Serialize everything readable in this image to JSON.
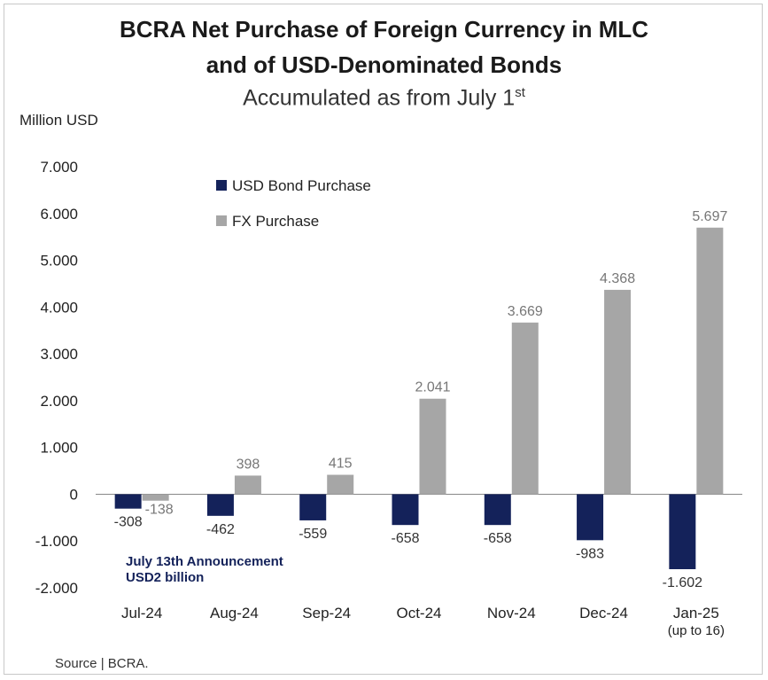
{
  "chart_data": {
    "type": "bar",
    "title_line1": "BCRA Net Purchase of Foreign Currency in MLC",
    "title_line2": "and of USD-Denominated Bonds",
    "subtitle_main": "Accumulated as from July 1",
    "subtitle_sup": "st",
    "ylabel": "Million USD",
    "categories": [
      "Jul-24",
      "Aug-24",
      "Sep-24",
      "Oct-24",
      "Nov-24",
      "Dec-24",
      "Jan-25"
    ],
    "category_sublabels": [
      "",
      "",
      "",
      "",
      "",
      "",
      "(up to 16)"
    ],
    "ylim": [
      -2000,
      7000
    ],
    "yticks": [
      -2000,
      -1000,
      0,
      1000,
      2000,
      3000,
      4000,
      5000,
      6000,
      7000
    ],
    "ytick_labels": [
      "-2.000",
      "-1.000",
      "0",
      "1.000",
      "2.000",
      "3.000",
      "4.000",
      "5.000",
      "6.000",
      "7.000"
    ],
    "series": [
      {
        "name": "USD Bond Purchase",
        "color": "#14225a",
        "values": [
          -308,
          -462,
          -559,
          -658,
          -658,
          -983,
          -1602
        ],
        "labels": [
          "-308",
          "-462",
          "-559",
          "-658",
          "-658",
          "-983",
          "-1.602"
        ]
      },
      {
        "name": "FX Purchase",
        "color": "#a6a6a6",
        "values": [
          -138,
          398,
          415,
          2041,
          3669,
          4368,
          5697
        ],
        "labels": [
          "-138",
          "398",
          "415",
          "2.041",
          "3.669",
          "4.368",
          "5.697"
        ]
      }
    ],
    "legend_position": "top-left",
    "grid": false,
    "annotation": [
      "July 13th Announcement",
      "USD2 billion"
    ],
    "source": "Source | BCRA."
  }
}
